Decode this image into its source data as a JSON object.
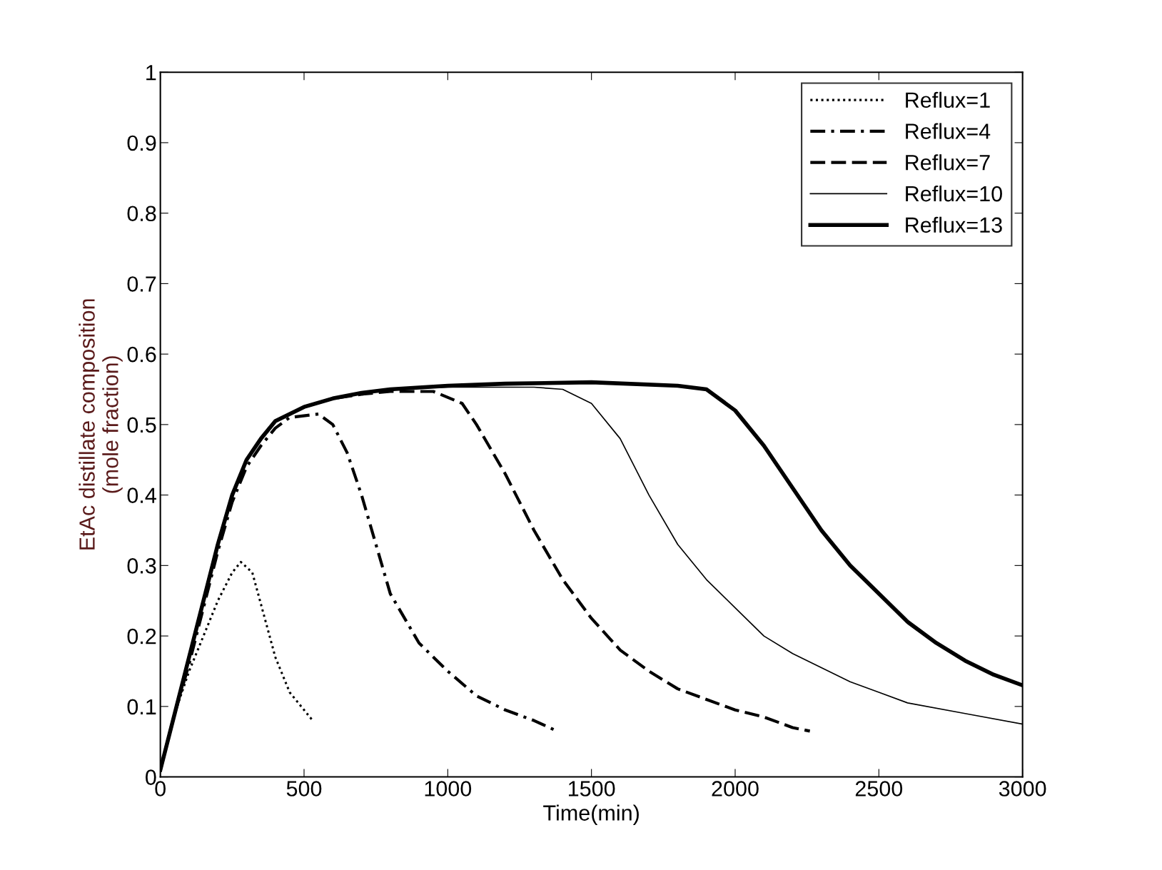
{
  "chart_data": {
    "type": "line",
    "xlabel": "Time(min)",
    "ylabel": "EtAc distillate composition\n(mole fraction)",
    "xlim": [
      0,
      3000
    ],
    "xticks": [
      0,
      500,
      1000,
      1500,
      2000,
      2500,
      3000
    ],
    "ylim": [
      0,
      1
    ],
    "yticks": [
      0,
      0.1,
      0.2,
      0.3,
      0.4,
      0.5,
      0.6,
      0.7,
      0.8,
      0.9,
      1
    ],
    "grid": false,
    "legend": "top right",
    "series": [
      {
        "name": "Reflux=1",
        "color": "#000000",
        "line_style": "dotted",
        "x": [
          0,
          50,
          100,
          150,
          200,
          250,
          280,
          320,
          360,
          400,
          450,
          530
        ],
        "values": [
          0.01,
          0.09,
          0.15,
          0.2,
          0.25,
          0.29,
          0.305,
          0.29,
          0.23,
          0.17,
          0.12,
          0.08
        ]
      },
      {
        "name": "Reflux=4",
        "color": "#000000",
        "line_style": "dashdot",
        "x": [
          0,
          50,
          100,
          150,
          200,
          250,
          300,
          350,
          400,
          450,
          550,
          600,
          650,
          700,
          750,
          800,
          900,
          1000,
          1100,
          1200,
          1300,
          1380
        ],
        "values": [
          0.01,
          0.09,
          0.16,
          0.24,
          0.32,
          0.39,
          0.44,
          0.47,
          0.495,
          0.51,
          0.515,
          0.5,
          0.46,
          0.4,
          0.33,
          0.26,
          0.19,
          0.15,
          0.115,
          0.095,
          0.08,
          0.065
        ]
      },
      {
        "name": "Reflux=7",
        "color": "#000000",
        "line_style": "dashed",
        "x": [
          0,
          50,
          100,
          150,
          200,
          250,
          300,
          350,
          400,
          500,
          600,
          700,
          800,
          950,
          1050,
          1100,
          1200,
          1300,
          1400,
          1500,
          1600,
          1700,
          1800,
          1900,
          2000,
          2100,
          2200,
          2260
        ],
        "values": [
          0.01,
          0.09,
          0.17,
          0.25,
          0.33,
          0.4,
          0.45,
          0.48,
          0.505,
          0.525,
          0.537,
          0.543,
          0.547,
          0.547,
          0.53,
          0.5,
          0.43,
          0.35,
          0.28,
          0.225,
          0.18,
          0.15,
          0.125,
          0.11,
          0.095,
          0.085,
          0.07,
          0.065
        ]
      },
      {
        "name": "Reflux=10",
        "color": "#000000",
        "line_style": "solid",
        "x": [
          0,
          50,
          100,
          150,
          200,
          250,
          300,
          350,
          400,
          500,
          600,
          700,
          800,
          1000,
          1300,
          1400,
          1500,
          1600,
          1700,
          1800,
          1900,
          2000,
          2100,
          2200,
          2300,
          2400,
          2500,
          2600,
          2800,
          3000
        ],
        "values": [
          0.01,
          0.09,
          0.17,
          0.25,
          0.33,
          0.4,
          0.45,
          0.48,
          0.505,
          0.525,
          0.537,
          0.545,
          0.55,
          0.553,
          0.553,
          0.55,
          0.53,
          0.48,
          0.4,
          0.33,
          0.28,
          0.24,
          0.2,
          0.175,
          0.155,
          0.135,
          0.12,
          0.105,
          0.09,
          0.075
        ]
      },
      {
        "name": "Reflux=13",
        "color": "#000000",
        "line_style": "solid",
        "x": [
          0,
          50,
          100,
          150,
          200,
          250,
          300,
          350,
          400,
          500,
          600,
          700,
          800,
          1000,
          1200,
          1500,
          1800,
          1900,
          2000,
          2100,
          2200,
          2300,
          2400,
          2500,
          2600,
          2700,
          2800,
          2900,
          3000
        ],
        "values": [
          0.01,
          0.09,
          0.17,
          0.25,
          0.33,
          0.4,
          0.45,
          0.48,
          0.505,
          0.525,
          0.537,
          0.545,
          0.55,
          0.555,
          0.558,
          0.56,
          0.555,
          0.55,
          0.52,
          0.47,
          0.41,
          0.35,
          0.3,
          0.26,
          0.22,
          0.19,
          0.165,
          0.145,
          0.13
        ]
      }
    ]
  }
}
